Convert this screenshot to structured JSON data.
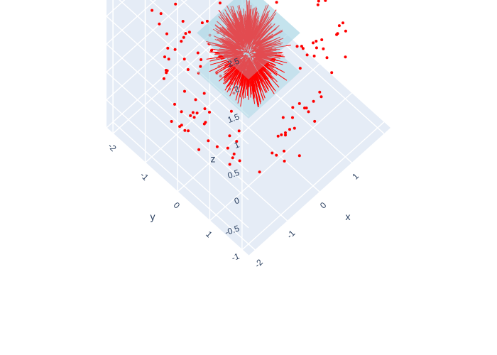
{
  "chart_data": {
    "type": "scatter3d",
    "title": "",
    "axes": {
      "x": {
        "title": "x",
        "range": [
          -2.2,
          2.2
        ],
        "ticks": [
          "-2",
          "-1",
          "0",
          "1"
        ]
      },
      "y": {
        "title": "y",
        "range": [
          -2.2,
          2.2
        ],
        "ticks": [
          "-2",
          "-1",
          "0",
          "1"
        ]
      },
      "z": {
        "title": "z",
        "range": [
          -1,
          2.5
        ],
        "ticks": [
          "-1",
          "-0.5",
          "0",
          "0.5",
          "1",
          "1.5",
          "2",
          "2.5"
        ]
      }
    },
    "grid": true,
    "scene_background": "#e5ecf6",
    "grid_color": "#ffffff",
    "marker_color": "#ff0000",
    "plane_color": "#add8e6",
    "series": [
      {
        "mode": "markers",
        "shape": "sphere of points",
        "radius": 2.0,
        "center": [
          0,
          0,
          0.75
        ],
        "count": 220
      },
      {
        "mode": "lines",
        "shape": "radial line segments (hedgehog)",
        "count": 600,
        "length": [
          0.3,
          0.7
        ]
      },
      {
        "mode": "surface",
        "shape": "square plane",
        "z": 0.0,
        "extent": [
          -0.8,
          0.8
        ]
      },
      {
        "mode": "surface",
        "shape": "square plane",
        "z": 0.7,
        "extent": [
          -0.8,
          0.8
        ]
      }
    ]
  }
}
